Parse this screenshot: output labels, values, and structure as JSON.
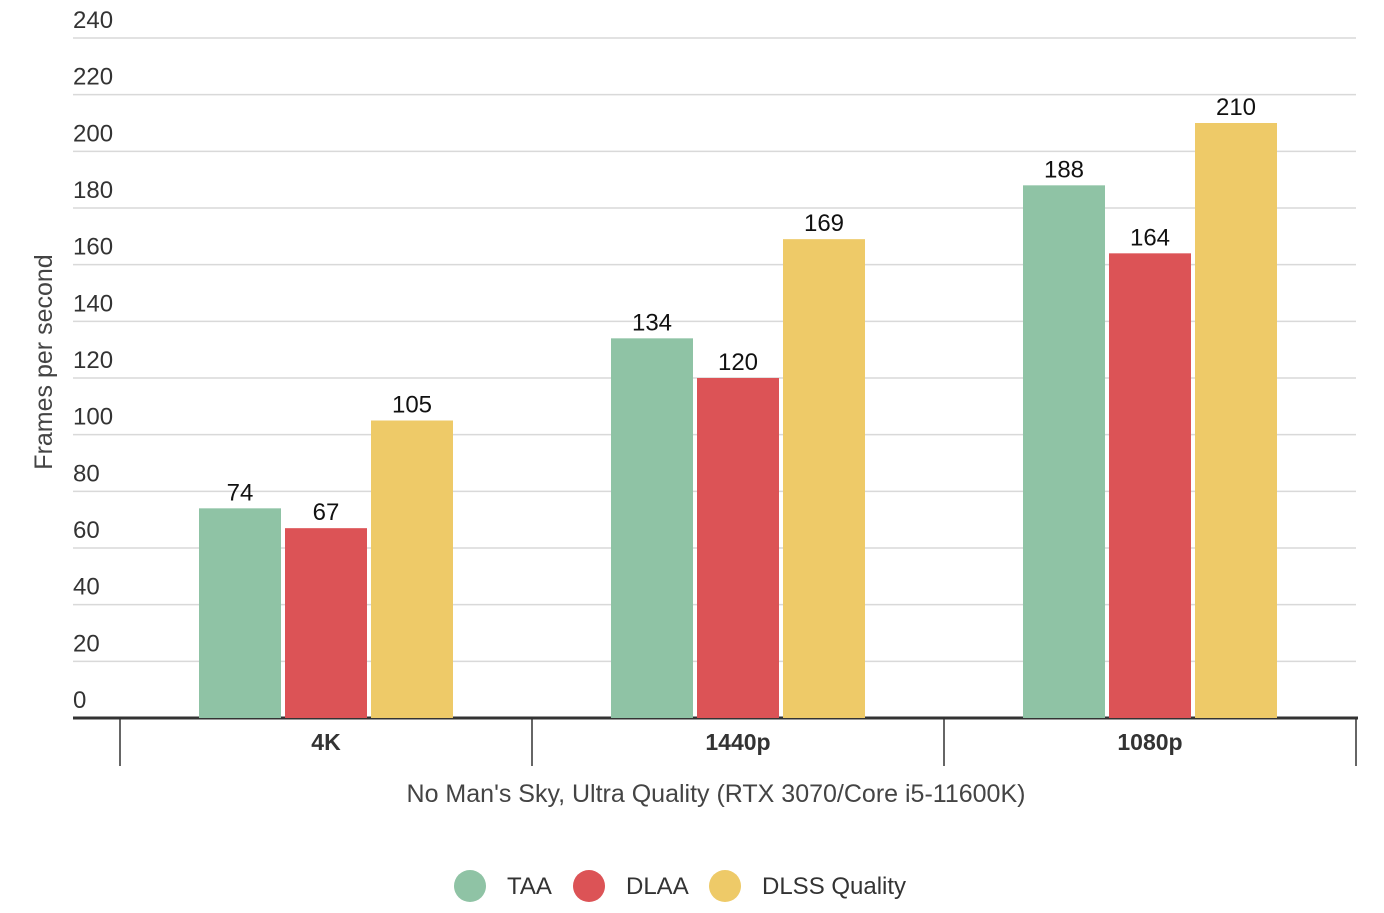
{
  "chart_data": {
    "type": "bar",
    "categories": [
      "4K",
      "1440p",
      "1080p"
    ],
    "series": [
      {
        "name": "TAA",
        "color": "#8fc3a5",
        "values": [
          74,
          134,
          188
        ]
      },
      {
        "name": "DLAA",
        "color": "#dc5356",
        "values": [
          67,
          120,
          164
        ]
      },
      {
        "name": "DLSS Quality",
        "color": "#eeca68",
        "values": [
          105,
          169,
          210
        ]
      }
    ],
    "x_label": "No Man's Sky, Ultra Quality (RTX 3070/Core i5-11600K)",
    "y_label": "Frames per second",
    "ylim": [
      0,
      240
    ],
    "yticks": [
      0,
      20,
      40,
      60,
      80,
      100,
      120,
      140,
      160,
      180,
      200,
      220,
      240
    ],
    "grid": true,
    "legend": "bottom"
  }
}
